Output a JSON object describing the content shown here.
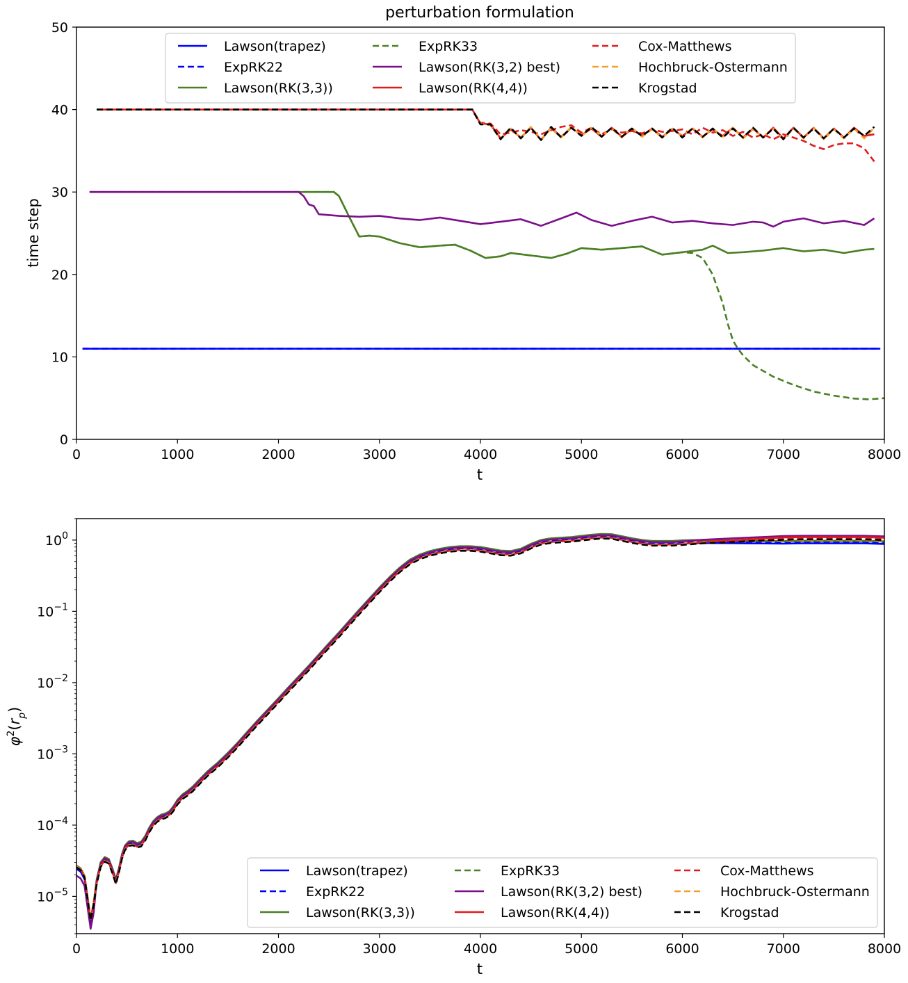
{
  "chart_data": [
    {
      "type": "line",
      "title": "perturbation formulation",
      "xlabel": "t",
      "ylabel": "time step",
      "xlim": [
        0,
        8000
      ],
      "ylim": [
        0,
        50
      ],
      "yscale": "linear",
      "xticks": [
        "0",
        "1000",
        "2000",
        "3000",
        "4000",
        "5000",
        "6000",
        "7000",
        "8000"
      ],
      "yticks": [
        "0",
        "10",
        "20",
        "30",
        "40",
        "50"
      ],
      "legend_position": "upper center",
      "series": [
        {
          "name": "Lawson(trapez)",
          "color": "#0000ff",
          "dash": "solid",
          "x": [
            60,
            7960
          ],
          "y": [
            11,
            11
          ]
        },
        {
          "name": "ExpRK22",
          "color": "#0000ff",
          "dash": "dashed",
          "x": [
            60,
            7960
          ],
          "y": [
            11,
            11
          ]
        },
        {
          "name": "Lawson(RK(3,3))",
          "color": "#4a7f24",
          "dash": "solid",
          "x": [
            130,
            2550,
            2600,
            2700,
            2800,
            2900,
            3000,
            3200,
            3400,
            3600,
            3750,
            3900,
            4050,
            4200,
            4300,
            4500,
            4700,
            4850,
            5000,
            5200,
            5400,
            5600,
            5800,
            6000,
            6200,
            6300,
            6450,
            6600,
            6800,
            7000,
            7200,
            7400,
            7600,
            7800,
            7900
          ],
          "y": [
            30,
            30,
            29.5,
            27,
            24.6,
            24.7,
            24.6,
            23.8,
            23.3,
            23.5,
            23.6,
            22.9,
            22.0,
            22.2,
            22.6,
            22.3,
            22.0,
            22.5,
            23.2,
            23.0,
            23.2,
            23.4,
            22.4,
            22.7,
            23.0,
            23.5,
            22.6,
            22.7,
            22.9,
            23.2,
            22.8,
            23.0,
            22.6,
            23.0,
            23.1
          ]
        },
        {
          "name": "ExpRK33",
          "color": "#4a7f24",
          "dash": "dashed",
          "x": [
            130,
            2550,
            2600,
            2700,
            2800,
            2900,
            3000,
            3200,
            3400,
            3600,
            3750,
            3900,
            4050,
            4200,
            4300,
            4500,
            4700,
            4850,
            5000,
            5200,
            5400,
            5600,
            5800,
            6000,
            6100,
            6200,
            6300,
            6400,
            6450,
            6500,
            6550,
            6600,
            6700,
            6900,
            7100,
            7300,
            7500,
            7700,
            7850,
            8000
          ],
          "y": [
            30,
            30,
            29.5,
            27,
            24.6,
            24.7,
            24.6,
            23.8,
            23.3,
            23.5,
            23.6,
            22.9,
            22.0,
            22.2,
            22.6,
            22.3,
            22.0,
            22.5,
            23.2,
            23.0,
            23.2,
            23.4,
            22.4,
            22.7,
            22.6,
            22.0,
            20.0,
            16.5,
            14.0,
            12.0,
            11.0,
            10.2,
            9.0,
            7.6,
            6.6,
            5.8,
            5.3,
            4.95,
            4.85,
            5.0
          ]
        },
        {
          "name": "Lawson(RK(3,2) best)",
          "color": "#7b0f8a",
          "dash": "solid",
          "x": [
            130,
            2200,
            2250,
            2300,
            2350,
            2400,
            2600,
            2800,
            3000,
            3200,
            3400,
            3600,
            3800,
            4000,
            4200,
            4400,
            4600,
            4800,
            4950,
            5100,
            5300,
            5500,
            5700,
            5900,
            6100,
            6300,
            6500,
            6700,
            6800,
            6900,
            7000,
            7200,
            7400,
            7600,
            7800,
            7900
          ],
          "y": [
            30,
            30,
            29.5,
            28.5,
            28.3,
            27.3,
            27.1,
            27.0,
            27.1,
            26.8,
            26.6,
            26.9,
            26.5,
            26.1,
            26.4,
            26.7,
            25.9,
            26.8,
            27.5,
            26.6,
            25.9,
            26.5,
            27.0,
            26.3,
            26.5,
            26.2,
            26.0,
            26.4,
            26.3,
            25.8,
            26.4,
            26.8,
            26.2,
            26.5,
            26.0,
            26.8
          ]
        },
        {
          "name": "Lawson(RK(4,4))",
          "color": "#e31a1c",
          "dash": "solid",
          "x": [
            200,
            3920,
            4000,
            4100,
            4200,
            4300,
            4400,
            4500,
            4600,
            4700,
            4800,
            4900,
            5000,
            5100,
            5200,
            5300,
            5400,
            5500,
            5600,
            5700,
            5800,
            5900,
            6000,
            6100,
            6200,
            6300,
            6400,
            6500,
            6600,
            6700,
            6800,
            6900,
            7000,
            7100,
            7200,
            7300,
            7400,
            7500,
            7600,
            7700,
            7800,
            7900
          ],
          "y": [
            40,
            40,
            38.3,
            38.2,
            36.5,
            37.6,
            36.6,
            37.8,
            36.3,
            37.8,
            36.7,
            37.8,
            36.9,
            37.7,
            36.7,
            37.8,
            36.7,
            37.6,
            36.8,
            37.7,
            36.7,
            37.6,
            36.8,
            37.7,
            36.7,
            37.6,
            36.8,
            37.8,
            36.6,
            37.7,
            36.6,
            37.8,
            36.5,
            37.8,
            36.6,
            37.8,
            36.5,
            37.7,
            36.6,
            37.8,
            36.8,
            37.0
          ]
        },
        {
          "name": "Cox-Matthews",
          "color": "#e31a1c",
          "dash": "dashed",
          "x": [
            200,
            3920,
            4000,
            4100,
            4200,
            4300,
            4400,
            4500,
            4600,
            4700,
            4800,
            4900,
            5000,
            5100,
            5200,
            5300,
            5400,
            5500,
            5600,
            5700,
            5800,
            5900,
            6000,
            6100,
            6200,
            6300,
            6400,
            6500,
            6600,
            6700,
            6800,
            6900,
            7000,
            7100,
            7200,
            7300,
            7400,
            7500,
            7600,
            7700,
            7800,
            7900
          ],
          "y": [
            40,
            40,
            38.4,
            38.3,
            37.0,
            37.2,
            37.5,
            37.3,
            37.0,
            37.5,
            37.9,
            38.1,
            37.2,
            37.8,
            37.0,
            37.6,
            37.2,
            37.4,
            37.1,
            37.6,
            37.3,
            37.4,
            37.6,
            37.0,
            37.8,
            37.2,
            37.5,
            36.8,
            37.3,
            36.6,
            37.0,
            36.4,
            37.0,
            36.6,
            36.2,
            35.6,
            35.2,
            35.7,
            35.9,
            35.9,
            35.3,
            33.7
          ]
        },
        {
          "name": "Hochbruck-Ostermann",
          "color": "#f4a02c",
          "dash": "dashed",
          "x": [
            200,
            3920,
            4000,
            4100,
            4200,
            4300,
            4400,
            4500,
            4600,
            4700,
            4800,
            4900,
            5000,
            5100,
            5200,
            5300,
            5400,
            5500,
            5600,
            5700,
            5800,
            5900,
            6000,
            6100,
            6200,
            6300,
            6400,
            6500,
            6600,
            6700,
            6800,
            6900,
            7000,
            7100,
            7200,
            7300,
            7400,
            7500,
            7600,
            7700,
            7800,
            7900
          ],
          "y": [
            40,
            40,
            38.3,
            38.1,
            36.4,
            37.7,
            36.6,
            37.9,
            36.4,
            37.7,
            36.6,
            37.9,
            36.8,
            37.8,
            36.8,
            37.7,
            36.6,
            37.8,
            36.7,
            37.6,
            36.6,
            37.7,
            36.7,
            37.8,
            36.6,
            37.7,
            36.7,
            37.8,
            36.5,
            37.6,
            36.7,
            37.7,
            36.4,
            37.7,
            36.5,
            37.8,
            36.4,
            37.6,
            36.5,
            37.7,
            36.5,
            37.8
          ]
        },
        {
          "name": "Krogstad",
          "color": "#000000",
          "dash": "dashed",
          "x": [
            200,
            3920,
            4000,
            4100,
            4200,
            4300,
            4400,
            4500,
            4600,
            4700,
            4800,
            4900,
            5000,
            5100,
            5200,
            5300,
            5400,
            5500,
            5600,
            5700,
            5800,
            5900,
            6000,
            6100,
            6200,
            6300,
            6400,
            6500,
            6600,
            6700,
            6800,
            6900,
            7000,
            7100,
            7200,
            7300,
            7400,
            7500,
            7600,
            7700,
            7800,
            7900
          ],
          "y": [
            40,
            40,
            38.2,
            38.2,
            36.4,
            37.8,
            36.5,
            37.8,
            36.3,
            37.9,
            36.6,
            37.8,
            36.8,
            37.9,
            36.7,
            37.8,
            36.7,
            37.7,
            36.8,
            37.7,
            36.6,
            37.8,
            36.6,
            37.7,
            36.7,
            37.7,
            36.6,
            37.7,
            36.6,
            37.8,
            36.6,
            37.7,
            36.4,
            37.8,
            36.6,
            37.7,
            36.5,
            37.7,
            36.6,
            37.7,
            36.8,
            37.9
          ]
        }
      ]
    },
    {
      "type": "line",
      "title": "",
      "xlabel": "t",
      "ylabel": "φ²(r_p)",
      "xlim": [
        0,
        8000
      ],
      "ylim": [
        3e-06,
        2.0
      ],
      "yscale": "log",
      "xticks": [
        "0",
        "1000",
        "2000",
        "3000",
        "4000",
        "5000",
        "6000",
        "7000",
        "8000"
      ],
      "yticks": [
        {
          "base": "10",
          "exp": "−5",
          "value": 1e-05
        },
        {
          "base": "10",
          "exp": "−4",
          "value": 0.0001
        },
        {
          "base": "10",
          "exp": "−3",
          "value": 0.001
        },
        {
          "base": "10",
          "exp": "−2",
          "value": 0.01
        },
        {
          "base": "10",
          "exp": "−1",
          "value": 0.1
        },
        {
          "base": "10",
          "exp": "0",
          "value": 1
        }
      ],
      "legend_position": "lower right",
      "base_curve": {
        "x": [
          0,
          40,
          80,
          110,
          140,
          170,
          200,
          240,
          280,
          320,
          360,
          390,
          420,
          450,
          480,
          520,
          560,
          600,
          640,
          680,
          720,
          760,
          800,
          840,
          880,
          920,
          960,
          1000,
          1050,
          1100,
          1150,
          1200,
          1250,
          1300,
          1350,
          1400,
          1500,
          1600,
          1700,
          1800,
          1900,
          2000,
          2100,
          2200,
          2300,
          2400,
          2500,
          2600,
          2700,
          2800,
          2900,
          3000,
          3100,
          3200,
          3300,
          3400,
          3500,
          3600,
          3700,
          3800,
          3900,
          4000,
          4100,
          4200,
          4300,
          4400,
          4500,
          4600,
          4700,
          4800,
          4900,
          5000,
          5100,
          5200,
          5300,
          5400,
          5500,
          5600,
          5700,
          5800,
          5900,
          6000,
          6200,
          6400,
          6600,
          6800,
          7000,
          7200,
          7400,
          7600,
          7800,
          8000
        ],
        "y": [
          2.5e-05,
          2.3e-05,
          1.8e-05,
          9e-06,
          4.5e-06,
          7.5e-06,
          1.6e-05,
          2.8e-05,
          3.3e-05,
          3.1e-05,
          2.2e-05,
          1.6e-05,
          2.3e-05,
          3.6e-05,
          4.8e-05,
          5.5e-05,
          5.6e-05,
          5.2e-05,
          5.4e-05,
          6.5e-05,
          8.5e-05,
          0.000105,
          0.00012,
          0.00013,
          0.000135,
          0.000145,
          0.00017,
          0.00021,
          0.00025,
          0.00028,
          0.00032,
          0.00038,
          0.00045,
          0.00053,
          0.00061,
          0.0007,
          0.00096,
          0.00135,
          0.00195,
          0.0028,
          0.00395,
          0.0056,
          0.008,
          0.0113,
          0.016,
          0.023,
          0.033,
          0.047,
          0.068,
          0.098,
          0.14,
          0.2,
          0.28,
          0.38,
          0.49,
          0.58,
          0.65,
          0.7,
          0.74,
          0.76,
          0.76,
          0.74,
          0.7,
          0.66,
          0.65,
          0.7,
          0.82,
          0.93,
          0.98,
          1.0,
          1.02,
          1.06,
          1.1,
          1.13,
          1.12,
          1.05,
          0.98,
          0.93,
          0.9,
          0.9,
          0.9,
          0.92,
          0.95,
          0.96,
          0.97,
          0.98,
          0.99,
          1.0,
          1.0,
          1.0,
          1.0,
          0.98
        ]
      },
      "series": [
        {
          "name": "Lawson(trapez)",
          "color": "#0000ff",
          "dash": "solid",
          "scale": 0.97,
          "end_scale": 0.9,
          "dip_scale": 1.0
        },
        {
          "name": "ExpRK22",
          "color": "#0000ff",
          "dash": "dashed",
          "scale": 1.0,
          "end_scale": 0.93,
          "dip_scale": 1.0
        },
        {
          "name": "Lawson(RK(3,3))",
          "color": "#4a7f24",
          "dash": "solid",
          "scale": 1.08,
          "end_scale": 0.97,
          "dip_scale": 1.0
        },
        {
          "name": "ExpRK33",
          "color": "#4a7f24",
          "dash": "dashed",
          "scale": 1.05,
          "end_scale": 0.98,
          "dip_scale": 1.0
        },
        {
          "name": "Lawson(RK(3,2) best)",
          "color": "#7b0f8a",
          "dash": "solid",
          "scale": 1.04,
          "end_scale": 1.15,
          "dip_scale": 0.75
        },
        {
          "name": "Lawson(RK(4,4))",
          "color": "#e31a1c",
          "dash": "solid",
          "scale": 0.96,
          "end_scale": 1.1,
          "dip_scale": 1.1
        },
        {
          "name": "Cox-Matthews",
          "color": "#e31a1c",
          "dash": "dashed",
          "scale": 0.95,
          "end_scale": 1.06,
          "dip_scale": 1.1
        },
        {
          "name": "Hochbruck-Ostermann",
          "color": "#f4a02c",
          "dash": "dashed",
          "scale": 0.95,
          "end_scale": 1.0,
          "dip_scale": 1.1
        },
        {
          "name": "Krogstad",
          "color": "#000000",
          "dash": "dashed",
          "scale": 0.93,
          "end_scale": 1.02,
          "dip_scale": 1.1
        }
      ]
    }
  ]
}
